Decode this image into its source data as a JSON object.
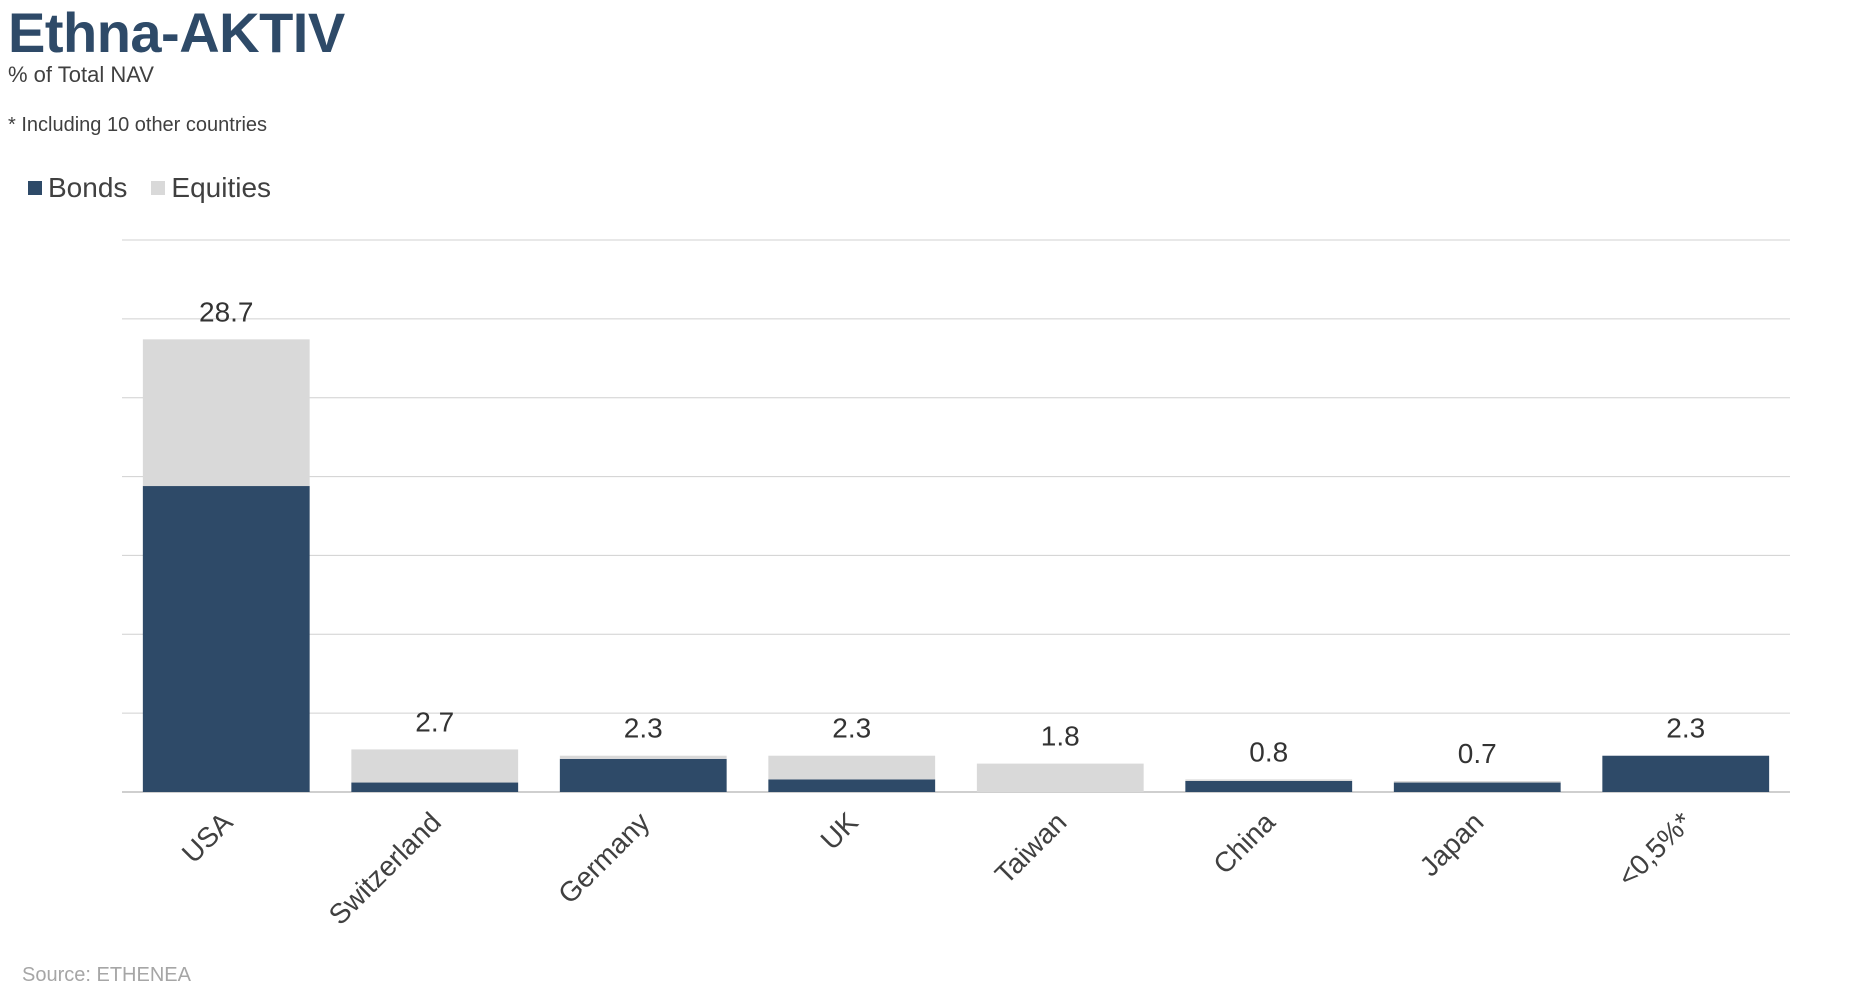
{
  "header": {
    "title": "Ethna-AKTIV",
    "subtitle": "% of Total NAV",
    "footnote": "* Including 10 other countries"
  },
  "source": "Source: ETHENEA",
  "colors": {
    "bonds": "#2e4a68",
    "equities": "#d9d9d9",
    "grid": "#d0d0d0"
  },
  "chart_data": {
    "type": "bar",
    "stacked": true,
    "title": "Ethna-AKTIV",
    "subtitle": "% of Total NAV",
    "xlabel": "",
    "ylabel": "",
    "ylim": [
      0,
      35
    ],
    "grid": true,
    "legend_position": "top-left",
    "categories": [
      "USA",
      "Switzerland",
      "Germany",
      "UK",
      "Taiwan",
      "China",
      "Japan",
      "<0,5%*"
    ],
    "series": [
      {
        "name": "Bonds",
        "values": [
          19.4,
          0.6,
          2.1,
          0.8,
          0.0,
          0.7,
          0.6,
          2.3
        ]
      },
      {
        "name": "Equities",
        "values": [
          9.3,
          2.1,
          0.2,
          1.5,
          1.8,
          0.1,
          0.1,
          0.0
        ]
      }
    ],
    "totals": [
      "28.7",
      "2.7",
      "2.3",
      "2.3",
      "1.8",
      "0.8",
      "0.7",
      "2.3"
    ]
  }
}
